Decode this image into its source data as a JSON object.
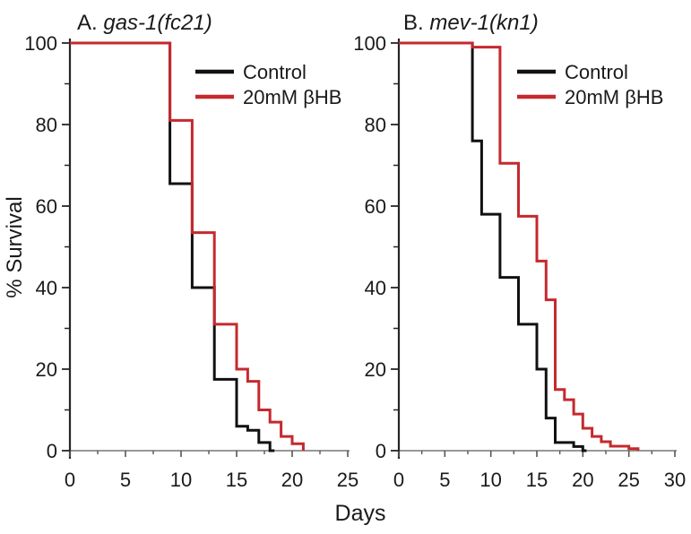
{
  "figure": {
    "x_axis_label": "Days",
    "y_axis_label": "% Survival"
  },
  "legend": {
    "items": [
      {
        "label": "Control",
        "color": "#111111"
      },
      {
        "label": "20mM βHB",
        "color": "#c5292e"
      }
    ]
  },
  "chart_data": [
    {
      "type": "line",
      "subtype": "kaplan-meier-step-survival",
      "title": "A. gas-1(fc21)",
      "title_prefix": "A. ",
      "title_italic": "gas-1(fc21)",
      "xlabel": "Days",
      "ylabel": "% Survival",
      "xlim": [
        0,
        25
      ],
      "ylim": [
        0,
        100
      ],
      "x_major_ticks": [
        0,
        5,
        10,
        15,
        20,
        25
      ],
      "x_minor_tick_step": 2.5,
      "y_major_ticks": [
        0,
        20,
        40,
        60,
        80,
        100
      ],
      "y_minor_tick_step": 10,
      "grid": false,
      "legend_position": "upper-right-inside",
      "series": [
        {
          "name": "Control",
          "color": "#111111",
          "step_points": [
            [
              0,
              100
            ],
            [
              9,
              100
            ],
            [
              9,
              65.5
            ],
            [
              11,
              65.5
            ],
            [
              11,
              40
            ],
            [
              13,
              40
            ],
            [
              13,
              17.5
            ],
            [
              15,
              17.5
            ],
            [
              15,
              6
            ],
            [
              16,
              6
            ],
            [
              16,
              5
            ],
            [
              17,
              5
            ],
            [
              17,
              2
            ],
            [
              18,
              2
            ],
            [
              18,
              0
            ],
            [
              18.4,
              0
            ]
          ]
        },
        {
          "name": "20mM βHB",
          "color": "#c5292e",
          "step_points": [
            [
              0,
              100
            ],
            [
              9,
              100
            ],
            [
              9,
              81
            ],
            [
              11,
              81
            ],
            [
              11,
              53.5
            ],
            [
              13,
              53.5
            ],
            [
              13,
              31
            ],
            [
              15,
              31
            ],
            [
              15,
              20
            ],
            [
              16,
              20
            ],
            [
              16,
              17
            ],
            [
              17,
              17
            ],
            [
              17,
              10
            ],
            [
              18,
              10
            ],
            [
              18,
              7
            ],
            [
              19,
              7
            ],
            [
              19,
              3.5
            ],
            [
              20,
              3.5
            ],
            [
              20,
              1.7
            ],
            [
              21,
              1.7
            ],
            [
              21,
              0
            ]
          ]
        }
      ]
    },
    {
      "type": "line",
      "subtype": "kaplan-meier-step-survival",
      "title": "B. mev-1(kn1)",
      "title_prefix": "B. ",
      "title_italic": "mev-1(kn1)",
      "xlabel": "Days",
      "ylabel": "% Survival",
      "xlim": [
        0,
        30
      ],
      "ylim": [
        0,
        100
      ],
      "x_major_ticks": [
        0,
        5,
        10,
        15,
        20,
        25,
        30
      ],
      "x_minor_tick_step": 2.5,
      "y_major_ticks": [
        0,
        20,
        40,
        60,
        80,
        100
      ],
      "y_minor_tick_step": 10,
      "grid": false,
      "legend_position": "upper-right-inside",
      "series": [
        {
          "name": "Control",
          "color": "#111111",
          "step_points": [
            [
              0,
              100
            ],
            [
              8,
              100
            ],
            [
              8,
              76
            ],
            [
              9,
              76
            ],
            [
              9,
              58
            ],
            [
              11,
              58
            ],
            [
              11,
              42.5
            ],
            [
              13,
              42.5
            ],
            [
              13,
              31
            ],
            [
              15,
              31
            ],
            [
              15,
              20
            ],
            [
              16,
              20
            ],
            [
              16,
              8
            ],
            [
              17,
              8
            ],
            [
              17,
              2
            ],
            [
              19,
              2
            ],
            [
              19,
              1
            ],
            [
              20,
              1
            ],
            [
              20,
              0
            ],
            [
              20.4,
              0
            ]
          ]
        },
        {
          "name": "20mM βHB",
          "color": "#c5292e",
          "step_points": [
            [
              0,
              100
            ],
            [
              8,
              100
            ],
            [
              8,
              99
            ],
            [
              11,
              99
            ],
            [
              11,
              70.5
            ],
            [
              13,
              70.5
            ],
            [
              13,
              57.5
            ],
            [
              15,
              57.5
            ],
            [
              15,
              46.5
            ],
            [
              16,
              46.5
            ],
            [
              16,
              37
            ],
            [
              17,
              37
            ],
            [
              17,
              15
            ],
            [
              18,
              15
            ],
            [
              18,
              12.5
            ],
            [
              19,
              12.5
            ],
            [
              19,
              9
            ],
            [
              20,
              9
            ],
            [
              20,
              5.5
            ],
            [
              21,
              5.5
            ],
            [
              21,
              3.5
            ],
            [
              22,
              3.5
            ],
            [
              22,
              2.2
            ],
            [
              23,
              2.2
            ],
            [
              23,
              1.1
            ],
            [
              25,
              1.1
            ],
            [
              25,
              0.5
            ],
            [
              26,
              0.5
            ],
            [
              26,
              0
            ]
          ]
        }
      ]
    }
  ]
}
